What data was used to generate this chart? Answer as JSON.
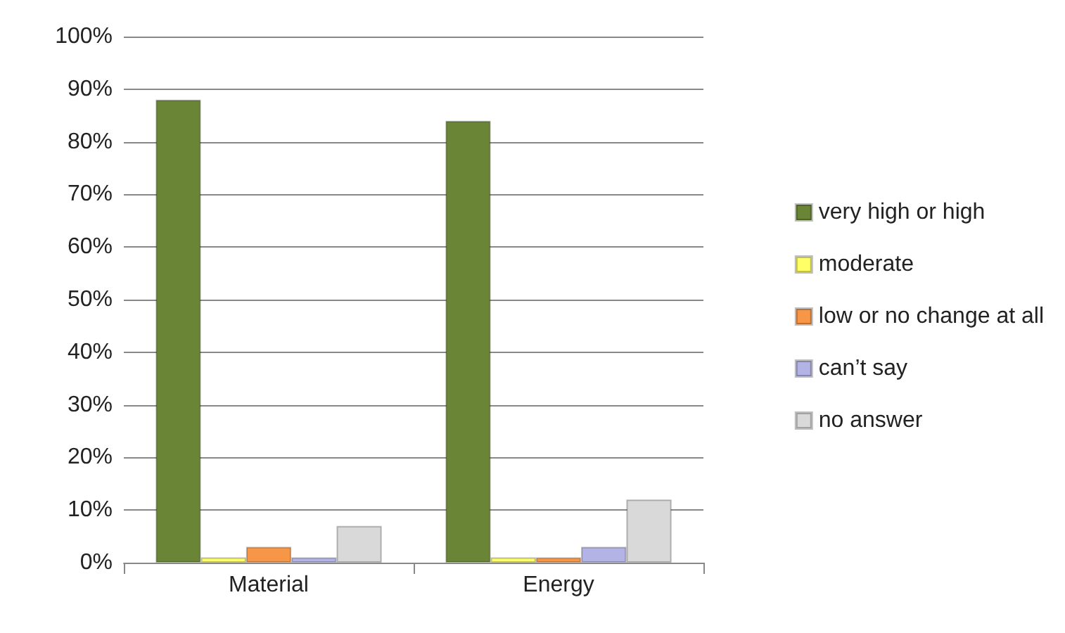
{
  "chart_data": {
    "type": "bar",
    "categories": [
      "Material",
      "Energy"
    ],
    "series": [
      {
        "name": "very high or high",
        "color": "#6a8535",
        "values": [
          88,
          84
        ]
      },
      {
        "name": "moderate",
        "color": "#ffff66",
        "values": [
          1,
          1
        ]
      },
      {
        "name": "low or no change at all",
        "color": "#f79646",
        "values": [
          3,
          1
        ]
      },
      {
        "name": "can’t say",
        "color": "#b3b3e6",
        "values": [
          1,
          3
        ]
      },
      {
        "name": "no answer",
        "color": "#d9d9d9",
        "values": [
          7,
          12
        ]
      }
    ],
    "ylim": [
      0,
      100
    ],
    "yticks": [
      {
        "value": 0,
        "label": "0%"
      },
      {
        "value": 10,
        "label": "10%"
      },
      {
        "value": 20,
        "label": "20%"
      },
      {
        "value": 30,
        "label": "30%"
      },
      {
        "value": 40,
        "label": "40%"
      },
      {
        "value": 50,
        "label": "50%"
      },
      {
        "value": 60,
        "label": "60%"
      },
      {
        "value": 70,
        "label": "70%"
      },
      {
        "value": 80,
        "label": "80%"
      },
      {
        "value": 90,
        "label": "90%"
      },
      {
        "value": 100,
        "label": "100%"
      }
    ],
    "grid": "y",
    "legend": "right"
  }
}
